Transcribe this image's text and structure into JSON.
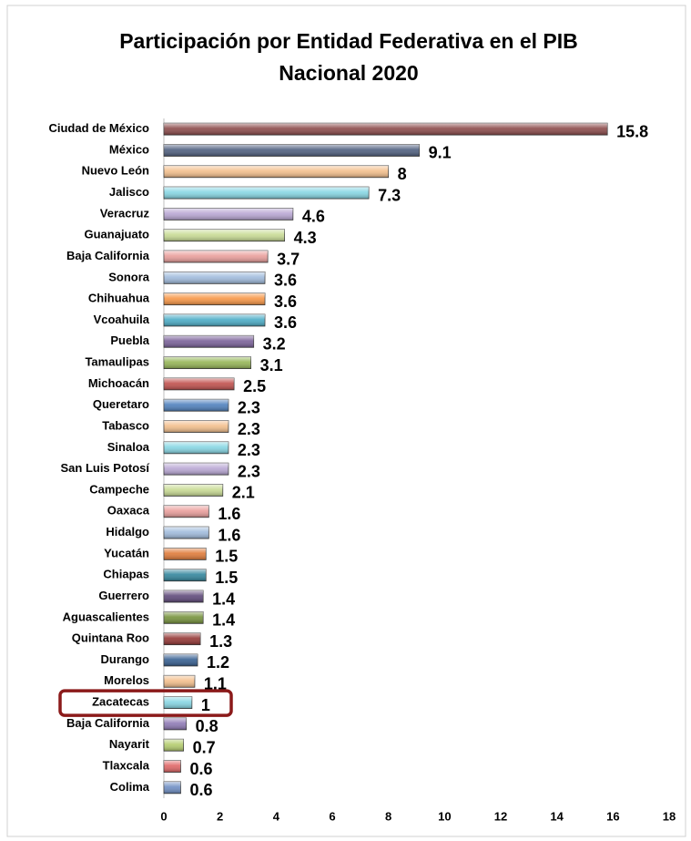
{
  "chart_data": {
    "type": "hbar",
    "title": [
      "Participación por Entidad Federativa en el PIB",
      "Nacional 2020"
    ],
    "categories": [
      "Ciudad de México",
      "México",
      "Nuevo León",
      "Jalisco",
      "Veracruz",
      "Guanajuato",
      "Baja California",
      "Sonora",
      "Chihuahua",
      "Vcoahuila",
      "Puebla",
      "Tamaulipas",
      "Michoacán",
      "Queretaro",
      "Tabasco",
      "Sinaloa",
      "San Luis Potosí",
      "Campeche",
      "Oaxaca",
      "Hidalgo",
      "Yucatán",
      "Chiapas",
      "Guerrero",
      "Aguascalientes",
      "Quintana Roo",
      "Durango",
      "Morelos",
      "Zacatecas",
      "Baja California",
      "Nayarit",
      "Tlaxcala",
      "Colima"
    ],
    "values": [
      15.8,
      9.1,
      8,
      7.3,
      4.6,
      4.3,
      3.7,
      3.6,
      3.6,
      3.6,
      3.2,
      3.1,
      2.5,
      2.3,
      2.3,
      2.3,
      2.3,
      2.1,
      1.6,
      1.6,
      1.5,
      1.5,
      1.4,
      1.4,
      1.3,
      1.2,
      1.1,
      1,
      0.8,
      0.7,
      0.6,
      0.6
    ],
    "colors": [
      "#8b4a4a",
      "#4f5f7f",
      "#f3bf8c",
      "#86d6e3",
      "#b9a7d4",
      "#c8db94",
      "#e99e9b",
      "#a0bbdc",
      "#f79646",
      "#4bacc6",
      "#7a6199",
      "#95b556",
      "#c0504d",
      "#4f81bd",
      "#f3bf8c",
      "#86d6e3",
      "#b9a7d4",
      "#c8db94",
      "#e99e9b",
      "#a0bbdc",
      "#e07b39",
      "#31859c",
      "#5f497a",
      "#76923c",
      "#943634",
      "#365f91",
      "#f3bf8c",
      "#86d6e3",
      "#8f7ab5",
      "#b4cd6e",
      "#e06666",
      "#6f8fc4"
    ],
    "xlim": [
      0,
      18
    ],
    "xticks": [
      0,
      2,
      4,
      6,
      8,
      10,
      12,
      14,
      16,
      18
    ],
    "grid": false,
    "highlight_index": 27
  }
}
